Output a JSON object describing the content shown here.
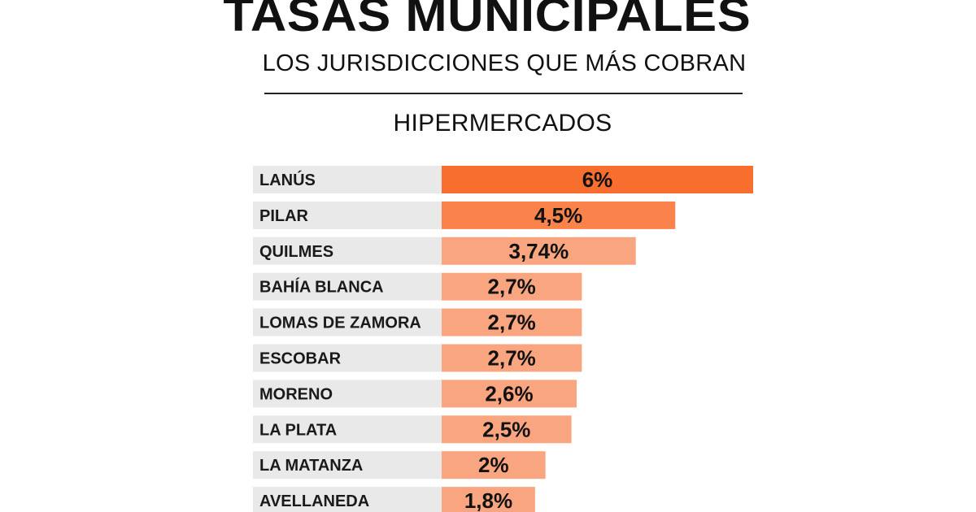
{
  "header": {
    "title": "TASAS MUNICIPALES",
    "subtitle": "LOS JURISDICCIONES QUE MÁS COBRAN",
    "section": "HIPERMERCADOS"
  },
  "colors": {
    "top_bar": "#f86e2f",
    "mid_bar": "#f9834a",
    "light_bar": "#f9a680",
    "label_background": "#e9e9e9"
  },
  "chart_data": {
    "type": "bar",
    "orientation": "horizontal",
    "title": "TASAS MUNICIPALES",
    "subtitle": "HIPERMERCADOS",
    "categories": [
      "LANÚS",
      "PILAR",
      "QUILMES",
      "BAHÍA BLANCA",
      "LOMAS DE ZAMORA",
      "ESCOBAR",
      "MORENO",
      "LA PLATA",
      "LA MATANZA",
      "AVELLANEDA"
    ],
    "values": [
      6,
      4.5,
      3.74,
      2.7,
      2.7,
      2.7,
      2.6,
      2.5,
      2,
      1.8
    ],
    "value_labels": [
      "6%",
      "4,5%",
      "3,74%",
      "2,7%",
      "2,7%",
      "2,7%",
      "2,6%",
      "2,5%",
      "2%",
      "1,8%"
    ],
    "unit": "%",
    "xlim": [
      0,
      6
    ],
    "grid": false,
    "legend": "none"
  }
}
